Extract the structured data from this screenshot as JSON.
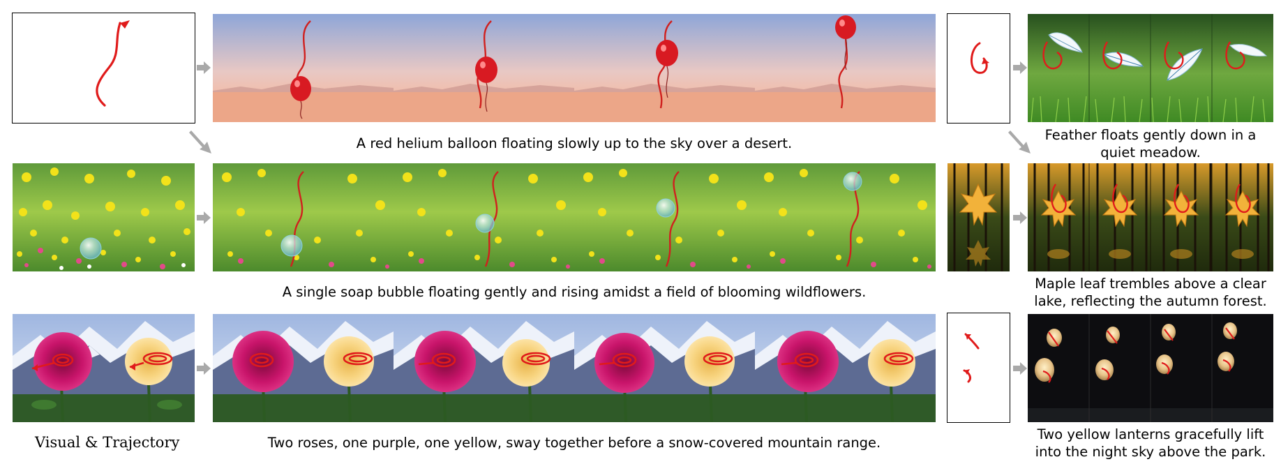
{
  "label": {
    "visual_trajectory": "Visual & Trajectory"
  },
  "captions": {
    "balloon": "A red helium balloon floating slowly up to the sky over a desert.",
    "bubble": "A single soap bubble floating gently and rising amidst a field of blooming wildflowers.",
    "roses": "Two roses, one purple, one yellow, sway together before a snow-covered mountain range.",
    "feather": "Feather floats gently down in a quiet meadow.",
    "maple": "Maple leaf trembles above a clear lake, reflecting the autumn forest.",
    "lanterns": "Two yellow lanterns gracefully lift into the night sky above the park."
  },
  "colors": {
    "trajectory": "#e01b1b",
    "arrow": "#a9a9a9"
  }
}
